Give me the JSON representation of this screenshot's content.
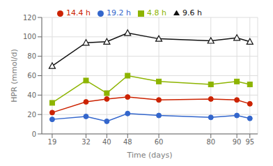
{
  "chart_data": {
    "type": "line",
    "x": [
      19,
      32,
      40,
      48,
      60,
      80,
      90,
      95
    ],
    "series": [
      {
        "name": "4.8 h",
        "color": "#8db400",
        "marker": "square",
        "values": [
          32,
          55,
          42,
          60,
          54,
          51,
          54,
          51
        ]
      },
      {
        "name": "9.6 h",
        "color": "#111111",
        "marker": "triangle",
        "values": [
          70,
          94,
          95,
          104,
          98,
          96,
          99,
          95
        ]
      },
      {
        "name": "14.4 h",
        "color": "#cc2200",
        "marker": "circle",
        "values": [
          22,
          33,
          36,
          38,
          35,
          36,
          35,
          31
        ]
      },
      {
        "name": "19.2 h",
        "color": "#3366cc",
        "marker": "circle",
        "values": [
          15,
          18,
          13,
          21,
          19,
          17,
          19,
          16
        ]
      }
    ],
    "xlabel": "Time (days)",
    "ylabel": "HPR (mmol/d)",
    "xlim": [
      15,
      98
    ],
    "ylim": [
      0,
      120
    ],
    "xticks": [
      19,
      32,
      40,
      48,
      60,
      80,
      90,
      95
    ],
    "yticks": [
      0,
      20,
      40,
      60,
      80,
      100,
      120
    ],
    "grid": true,
    "legend": "top"
  }
}
